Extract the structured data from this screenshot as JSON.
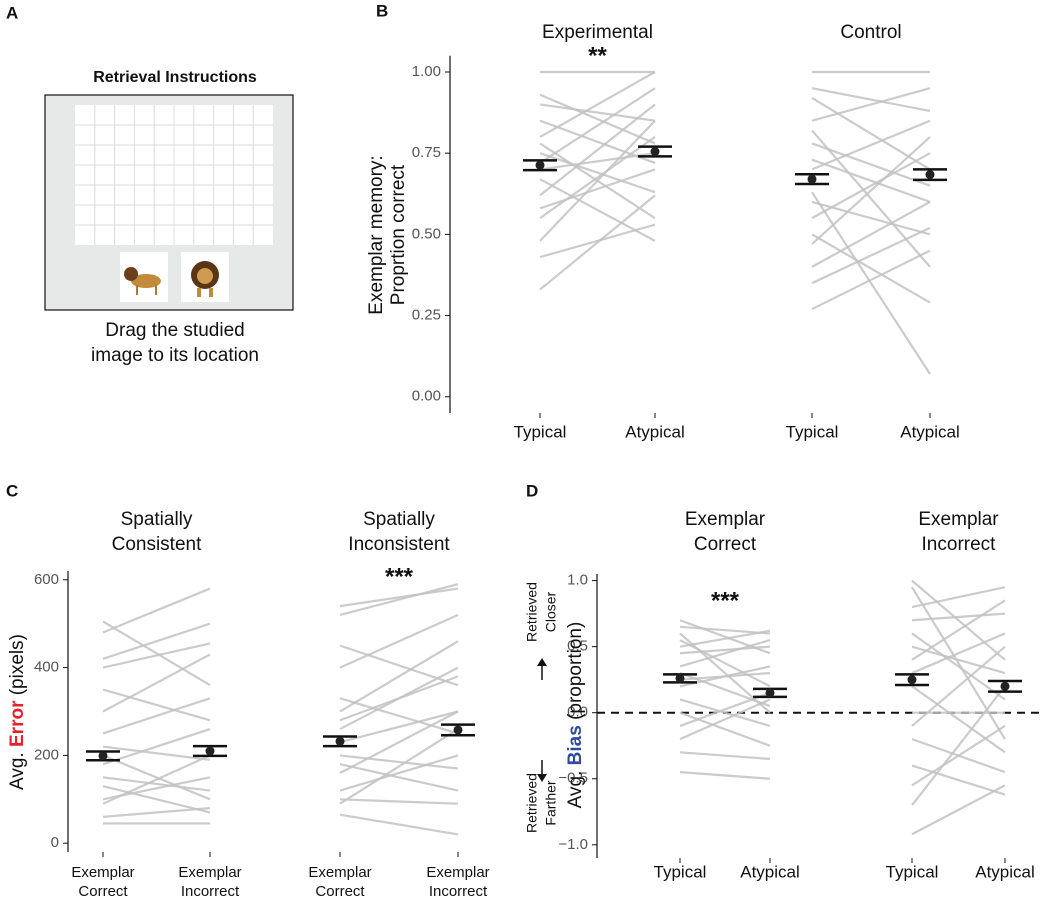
{
  "diagram": {
    "panel": "A",
    "title": "Retrieval Instructions",
    "caption": [
      "Drag the studied",
      "image to its location"
    ]
  },
  "chart_data": [
    {
      "type": "paired-line",
      "panel": "B",
      "ylabel": [
        "Exemplar memory:",
        "Proprtion correct"
      ],
      "ylim": [
        -0.05,
        1.05
      ],
      "yticks": [
        {
          "value": 0,
          "label": "0.00"
        },
        {
          "value": 0.25,
          "label": "0.25"
        },
        {
          "value": 0.5,
          "label": "0.50"
        },
        {
          "value": 0.75,
          "label": "0.75"
        },
        {
          "value": 1,
          "label": "1.00"
        }
      ],
      "subject_color": "#c2c2c2",
      "groups": [
        {
          "title": [
            "Experimental"
          ],
          "annotation": "**",
          "categories": [
            [
              "Typical"
            ],
            [
              "Atypical"
            ]
          ],
          "mean": [
            0.713,
            0.755
          ],
          "error": [
            0.015,
            0.015
          ],
          "subjects": [
            [
              0.33,
              0.62
            ],
            [
              0.43,
              0.53
            ],
            [
              0.55,
              0.8
            ],
            [
              0.62,
              0.9
            ],
            [
              0.7,
              0.75
            ],
            [
              0.75,
              0.63
            ],
            [
              0.8,
              1.0
            ],
            [
              0.85,
              0.72
            ],
            [
              0.9,
              0.85
            ],
            [
              1.0,
              1.0
            ],
            [
              0.67,
              0.48
            ],
            [
              0.58,
              0.7
            ],
            [
              0.48,
              0.85
            ],
            [
              0.93,
              0.78
            ],
            [
              0.72,
              0.95
            ],
            [
              0.78,
              0.55
            ]
          ]
        },
        {
          "title": [
            "Control"
          ],
          "categories": [
            [
              "Typical"
            ],
            [
              "Atypical"
            ]
          ],
          "mean": [
            0.67,
            0.684
          ],
          "error": [
            0.015,
            0.016
          ],
          "subjects": [
            [
              0.27,
              0.45
            ],
            [
              0.4,
              0.6
            ],
            [
              0.5,
              0.29
            ],
            [
              0.55,
              0.75
            ],
            [
              0.63,
              0.07
            ],
            [
              0.7,
              0.85
            ],
            [
              0.78,
              0.65
            ],
            [
              0.85,
              0.95
            ],
            [
              0.92,
              0.7
            ],
            [
              1.0,
              1.0
            ],
            [
              0.6,
              0.5
            ],
            [
              0.47,
              0.8
            ],
            [
              0.82,
              0.4
            ],
            [
              0.73,
              0.6
            ],
            [
              0.35,
              0.52
            ],
            [
              0.95,
              0.88
            ]
          ]
        }
      ]
    },
    {
      "type": "paired-line",
      "panel": "C",
      "ylabel": [
        "Avg. ",
        "Error",
        " (pixels)"
      ],
      "ylabel_highlight_color": "#e8202a",
      "ylim": [
        -20,
        620
      ],
      "yticks": [
        0,
        200,
        400,
        600
      ],
      "subject_color": "#c2c2c2",
      "groups": [
        {
          "title": [
            "Spatially",
            "Consistent"
          ],
          "categories": [
            [
              "Exemplar",
              "Correct"
            ],
            [
              "Exemplar",
              "Incorrect"
            ]
          ],
          "mean": [
            199,
            210
          ],
          "error": [
            10,
            11
          ],
          "subjects": [
            [
              60,
              80
            ],
            [
              100,
              150
            ],
            [
              150,
              120
            ],
            [
              180,
              260
            ],
            [
              220,
              190
            ],
            [
              300,
              430
            ],
            [
              350,
              280
            ],
            [
              420,
              500
            ],
            [
              505,
              360
            ],
            [
              480,
              580
            ],
            [
              130,
              70
            ],
            [
              250,
              330
            ],
            [
              90,
              200
            ],
            [
              200,
              100
            ],
            [
              400,
              455
            ],
            [
              45,
              45
            ]
          ]
        },
        {
          "title": [
            "Spatially",
            "Inconsistent"
          ],
          "annotation": "***",
          "categories": [
            [
              "Exemplar",
              "Correct"
            ],
            [
              "Exemplar",
              "Incorrect"
            ]
          ],
          "mean": [
            232,
            258
          ],
          "error": [
            11,
            12
          ],
          "subjects": [
            [
              65,
              20
            ],
            [
              120,
              200
            ],
            [
              160,
              300
            ],
            [
              200,
              170
            ],
            [
              260,
              400
            ],
            [
              330,
              250
            ],
            [
              400,
              520
            ],
            [
              450,
              360
            ],
            [
              520,
              590
            ],
            [
              540,
              580
            ],
            [
              100,
              90
            ],
            [
              230,
              300
            ],
            [
              300,
              460
            ],
            [
              180,
              120
            ],
            [
              90,
              260
            ],
            [
              280,
              380
            ]
          ]
        }
      ]
    },
    {
      "type": "paired-line",
      "panel": "D",
      "ylabel": [
        "Avg. ",
        "Bias",
        " (proportion)"
      ],
      "ylabel_highlight_color": "#2f4a9e",
      "direction_labels": [
        [
          "Retrieved",
          "Closer"
        ],
        [
          "Retrieved",
          "Farther"
        ]
      ],
      "ylim": [
        -1.1,
        1.05
      ],
      "refline": 0,
      "yticks": [
        {
          "value": -1,
          "label": "−1.0"
        },
        {
          "value": -0.5,
          "label": "−0.5"
        },
        {
          "value": 0,
          "label": "0.0"
        },
        {
          "value": 0.5,
          "label": "0.5"
        },
        {
          "value": 1,
          "label": "1.0"
        }
      ],
      "subject_color": "#c2c2c2",
      "groups": [
        {
          "title": [
            "Exemplar",
            "Correct"
          ],
          "annotation": "***",
          "categories": [
            [
              "Typical"
            ],
            [
              "Atypical"
            ]
          ],
          "mean": [
            0.26,
            0.15
          ],
          "error": [
            0.03,
            0.03
          ],
          "subjects": [
            [
              -0.45,
              -0.5
            ],
            [
              -0.2,
              0.1
            ],
            [
              0.0,
              -0.25
            ],
            [
              0.2,
              0.35
            ],
            [
              0.3,
              0.05
            ],
            [
              0.45,
              0.5
            ],
            [
              0.55,
              0.2
            ],
            [
              0.65,
              0.6
            ],
            [
              0.7,
              0.45
            ],
            [
              0.1,
              -0.1
            ],
            [
              0.35,
              0.55
            ],
            [
              -0.3,
              -0.35
            ],
            [
              0.6,
              0.0
            ],
            [
              0.25,
              0.3
            ],
            [
              0.5,
              0.62
            ],
            [
              -0.1,
              0.15
            ]
          ]
        },
        {
          "title": [
            "Exemplar",
            "Incorrect"
          ],
          "categories": [
            [
              "Typical"
            ],
            [
              "Atypical"
            ]
          ],
          "mean": [
            0.25,
            0.2
          ],
          "error": [
            0.04,
            0.04
          ],
          "subjects": [
            [
              -0.92,
              -0.55
            ],
            [
              -0.7,
              0.2
            ],
            [
              -0.4,
              -0.62
            ],
            [
              -0.1,
              0.5
            ],
            [
              0.2,
              -0.3
            ],
            [
              0.4,
              0.85
            ],
            [
              0.6,
              0.1
            ],
            [
              0.8,
              0.95
            ],
            [
              1.0,
              0.4
            ],
            [
              0.95,
              -0.2
            ],
            [
              0.0,
              0.0
            ],
            [
              0.3,
              0.6
            ],
            [
              -0.2,
              -0.45
            ],
            [
              0.5,
              0.3
            ],
            [
              0.7,
              0.75
            ],
            [
              -0.55,
              -0.1
            ]
          ]
        }
      ]
    }
  ]
}
